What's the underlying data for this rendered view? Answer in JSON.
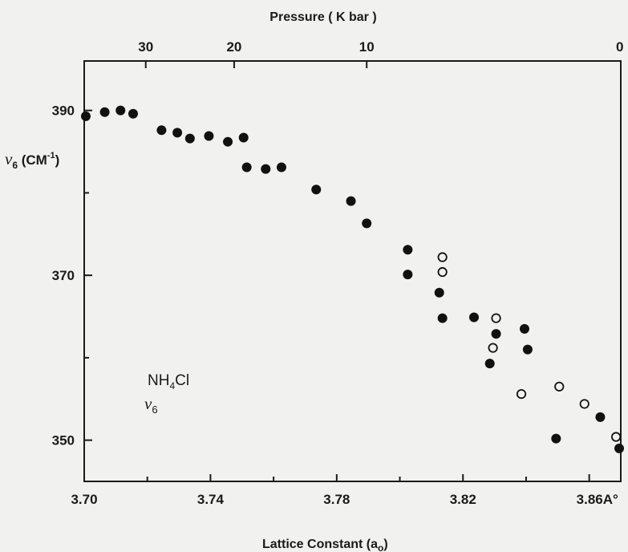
{
  "chart_data": {
    "type": "scatter",
    "title": "",
    "top_axis": {
      "label": "Pressure ( K bar )",
      "ticks": [
        {
          "label": "30",
          "at_lattice": 3.7195
        },
        {
          "label": "20",
          "at_lattice": 3.7475
        },
        {
          "label": "10",
          "at_lattice": 3.7895
        },
        {
          "label": "0",
          "at_lattice": 3.87
        }
      ]
    },
    "xlabel": "Lattice Constant (a",
    "xlabel_subscript": "o",
    "xlabel_close": ")",
    "xlim": [
      3.7,
      3.87
    ],
    "x_ticks": [
      {
        "value": 3.7,
        "label": "3.70"
      },
      {
        "value": 3.74,
        "label": "3.74"
      },
      {
        "value": 3.78,
        "label": "3.78"
      },
      {
        "value": 3.82,
        "label": "3.82"
      },
      {
        "value": 3.86,
        "label": "3.86A°"
      }
    ],
    "x_minor_ticks": [
      3.72,
      3.76,
      3.8,
      3.84
    ],
    "ylabel_symbol": "ν",
    "ylabel_subscript": "6",
    "ylabel_unit_open": " (CM",
    "ylabel_unit_sup": "-1",
    "ylabel_unit_close": ")",
    "ylim": [
      345,
      396
    ],
    "y_ticks": [
      {
        "value": 350,
        "label": "350"
      },
      {
        "value": 370,
        "label": "370"
      },
      {
        "value": 390,
        "label": "390"
      }
    ],
    "y_minor_ticks": [
      360,
      380
    ],
    "annotation": {
      "line1": "NH",
      "line1_sub": "4",
      "line1_rest": "Cl",
      "line2_symbol": "ν",
      "line2_sub": "6"
    },
    "series": [
      {
        "marker": "filled",
        "points": [
          [
            3.7005,
            389.3
          ],
          [
            3.7065,
            389.8
          ],
          [
            3.7115,
            390.0
          ],
          [
            3.7155,
            389.6
          ],
          [
            3.7245,
            387.6
          ],
          [
            3.7295,
            387.3
          ],
          [
            3.7335,
            386.6
          ],
          [
            3.7395,
            386.9
          ],
          [
            3.7455,
            386.2
          ],
          [
            3.7505,
            386.7
          ],
          [
            3.7515,
            383.1
          ],
          [
            3.7575,
            382.9
          ],
          [
            3.7625,
            383.1
          ],
          [
            3.7735,
            380.4
          ],
          [
            3.7845,
            379.0
          ],
          [
            3.7895,
            376.3
          ],
          [
            3.8025,
            373.1
          ],
          [
            3.8025,
            370.1
          ],
          [
            3.8125,
            367.9
          ],
          [
            3.8135,
            364.8
          ],
          [
            3.8235,
            364.9
          ],
          [
            3.8305,
            362.9
          ],
          [
            3.8395,
            363.5
          ],
          [
            3.8405,
            361.0
          ],
          [
            3.8285,
            359.3
          ],
          [
            3.8495,
            350.2
          ],
          [
            3.8635,
            352.8
          ],
          [
            3.8695,
            349.0
          ]
        ]
      },
      {
        "marker": "open",
        "points": [
          [
            3.8135,
            372.2
          ],
          [
            3.8135,
            370.4
          ],
          [
            3.8305,
            364.8
          ],
          [
            3.8295,
            361.2
          ],
          [
            3.8385,
            355.6
          ],
          [
            3.8505,
            356.5
          ],
          [
            3.8585,
            354.4
          ],
          [
            3.8685,
            350.4
          ]
        ]
      }
    ]
  }
}
